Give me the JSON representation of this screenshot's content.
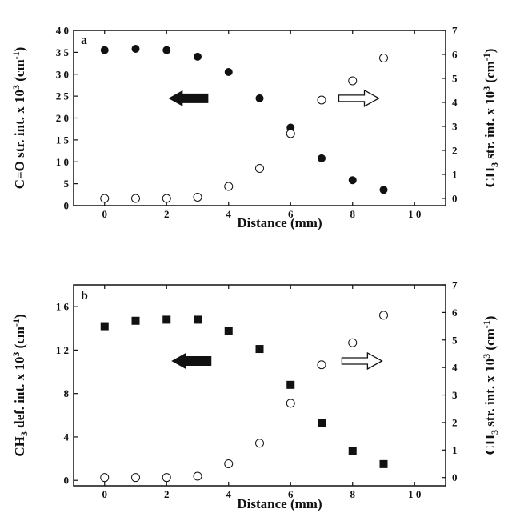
{
  "chart_data": [
    {
      "panel": "a",
      "type": "scatter",
      "xlabel": "Distance (mm)",
      "xlim": [
        -1,
        11
      ],
      "xticks": [
        0,
        2,
        4,
        6,
        8,
        10
      ],
      "xtick_labels": [
        "0",
        "2",
        "4",
        "6",
        "8",
        "1 0"
      ],
      "left_axis": {
        "label_parts": [
          "C=O str. int. x 10",
          "3",
          " (cm",
          "-1",
          ")"
        ],
        "ylim": [
          0,
          40
        ],
        "ticks": [
          0,
          5,
          10,
          15,
          20,
          25,
          30,
          35,
          40
        ],
        "tick_labels": [
          "0",
          "5",
          "1 0",
          "1 5",
          "2 0",
          "2 5",
          "3 0",
          "3 5",
          "4 0"
        ]
      },
      "right_axis": {
        "label_parts": [
          "CH",
          "3",
          " str. int. x 10",
          "3",
          " (cm",
          "-1",
          ")"
        ],
        "ylim": [
          -0.3,
          7
        ],
        "ticks": [
          0,
          1,
          2,
          3,
          4,
          5,
          6,
          7
        ],
        "tick_labels": [
          "0",
          "1",
          "2",
          "3",
          "4",
          "5",
          "6",
          "7"
        ]
      },
      "series": [
        {
          "axis": "left",
          "marker": "filled-circle",
          "x": [
            0,
            1,
            2,
            3,
            4,
            5,
            6,
            7,
            8,
            9
          ],
          "y": [
            35.5,
            35.8,
            35.5,
            34.0,
            30.5,
            24.5,
            17.8,
            10.8,
            5.8,
            3.6
          ]
        },
        {
          "axis": "right",
          "marker": "open-circle",
          "x": [
            0,
            1,
            2,
            3,
            4,
            5,
            6,
            7,
            8,
            9
          ],
          "y": [
            0.0,
            0.0,
            0.0,
            0.05,
            0.5,
            1.25,
            2.7,
            4.1,
            4.9,
            5.85
          ]
        }
      ],
      "arrows": [
        {
          "style": "filled",
          "direction": "left",
          "x": 2.7,
          "y_left": 24.5
        },
        {
          "style": "open",
          "direction": "right",
          "x": 8.2,
          "y_left": 24.5
        }
      ]
    },
    {
      "panel": "b",
      "type": "scatter",
      "xlabel": "Distance (mm)",
      "xlim": [
        -1,
        11
      ],
      "xticks": [
        0,
        2,
        4,
        6,
        8,
        10
      ],
      "xtick_labels": [
        "0",
        "2",
        "4",
        "6",
        "8",
        "1 0"
      ],
      "left_axis": {
        "label_parts": [
          "CH",
          "3",
          " def. int. x 10",
          "3",
          " (cm",
          "-1",
          ")"
        ],
        "ylim": [
          -0.5,
          18
        ],
        "ticks": [
          0,
          4,
          8,
          12,
          16
        ],
        "tick_labels": [
          "0",
          "4",
          "8",
          "1 2",
          "1 6"
        ]
      },
      "right_axis": {
        "label_parts": [
          "CH",
          "3",
          " str. int. x 10",
          "3",
          " (cm",
          "-1",
          ")"
        ],
        "ylim": [
          -0.3,
          7
        ],
        "ticks": [
          0,
          1,
          2,
          3,
          4,
          5,
          6,
          7
        ],
        "tick_labels": [
          "0",
          "1",
          "2",
          "3",
          "4",
          "5",
          "6",
          "7"
        ]
      },
      "series": [
        {
          "axis": "left",
          "marker": "filled-square",
          "x": [
            0,
            1,
            2,
            3,
            4,
            5,
            6,
            7,
            8,
            9
          ],
          "y": [
            14.2,
            14.7,
            14.8,
            14.8,
            13.8,
            12.1,
            8.8,
            5.3,
            2.7,
            1.5
          ]
        },
        {
          "axis": "right",
          "marker": "open-circle",
          "x": [
            0,
            1,
            2,
            3,
            4,
            5,
            6,
            7,
            8,
            9
          ],
          "y": [
            0.0,
            0.0,
            0.0,
            0.05,
            0.5,
            1.25,
            2.7,
            4.1,
            4.9,
            5.9
          ]
        }
      ],
      "arrows": [
        {
          "style": "filled",
          "direction": "left",
          "x": 2.8,
          "y_left": 11.0
        },
        {
          "style": "open",
          "direction": "right",
          "x": 8.3,
          "y_left": 11.0
        }
      ]
    }
  ]
}
